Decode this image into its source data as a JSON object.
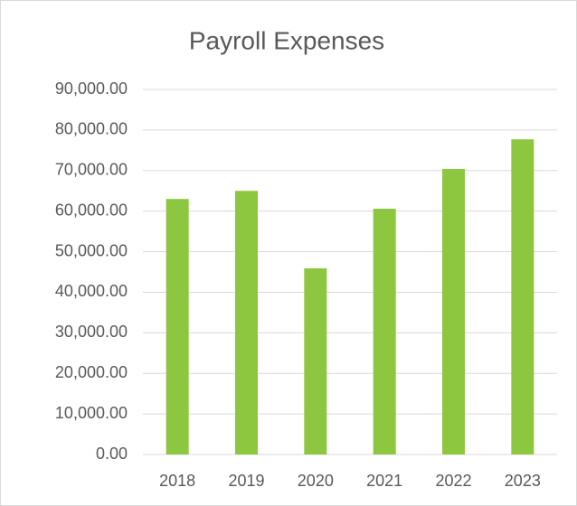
{
  "chart_data": {
    "type": "bar",
    "title": "Payroll Expenses",
    "categories": [
      "2018",
      "2019",
      "2020",
      "2021",
      "2022",
      "2023"
    ],
    "values": [
      63000,
      65000,
      45900,
      60600,
      70400,
      77700
    ],
    "color": "#8dc63f",
    "ylim": [
      0,
      90000
    ],
    "yticks": [
      {
        "value": 0,
        "label": "0.00"
      },
      {
        "value": 10000,
        "label": "10,000.00"
      },
      {
        "value": 20000,
        "label": "20,000.00"
      },
      {
        "value": 30000,
        "label": "30,000.00"
      },
      {
        "value": 40000,
        "label": "40,000.00"
      },
      {
        "value": 50000,
        "label": "50,000.00"
      },
      {
        "value": 60000,
        "label": "60,000.00"
      },
      {
        "value": 70000,
        "label": "70,000.00"
      },
      {
        "value": 80000,
        "label": "80,000.00"
      },
      {
        "value": 90000,
        "label": "90,000.00"
      }
    ],
    "grid": true
  }
}
